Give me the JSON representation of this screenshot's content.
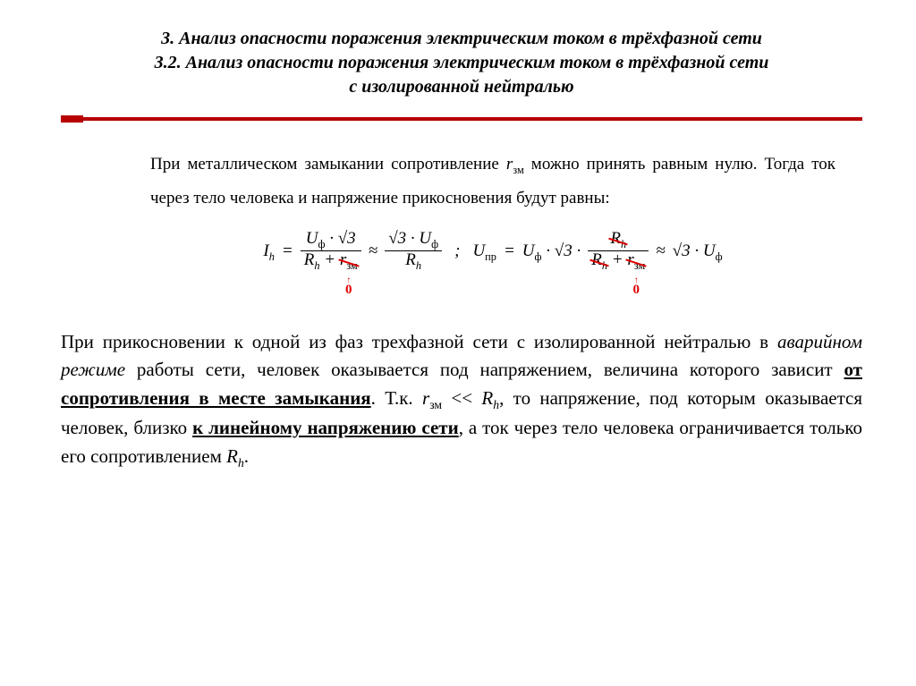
{
  "title": {
    "line1": "3. Анализ опасности поражения электрическим током в трёхфазной сети",
    "line2": "3.2. Анализ опасности поражения электрическим током в трёхфазной сети",
    "line3": "с изолированной нейтралью"
  },
  "colors": {
    "accent": "#b70000",
    "strike": "#e00000",
    "text": "#000000",
    "bg": "#ffffff"
  },
  "intro": {
    "t1": "При металлическом замыкании сопротивление ",
    "rzm": "r",
    "rzm_sub": "зм",
    "t2": " можно принять равным нулю. Тогда ток через тело человека и напряжение прикосновения будут равны:"
  },
  "formula": {
    "Ih": "I",
    "Ih_sub": "h",
    "eq": "=",
    "approx": "≈",
    "semicolon": ";",
    "cdot": "·",
    "sqrt3": "√3",
    "Uf": "U",
    "Uf_sub": "ф",
    "Rh": "R",
    "Rh_sub": "h",
    "rzm": "r",
    "rzm_sub": "зм",
    "Upr": "U",
    "Upr_sub": "пр",
    "zero": "0"
  },
  "para": {
    "p1": "При прикосновении к одной из фаз трехфазной сети с изолированной нейтралью в ",
    "p2_ital": "аварийном режиме",
    "p3": " работы сети, человек оказывается под напряжением, величина которого зависит ",
    "p4_boldul": "от сопротивления в месте замыкания",
    "p5": ". Т.к. ",
    "rzm": "r",
    "rzm_sub": "зм",
    "p6": " << ",
    "Rh": "R",
    "Rh_sub": "h",
    "p7": ", то напряжение, под которым оказывается человек, близко ",
    "p8_boldul": "к линейному напряжению сети",
    "p9": ", а ток через тело человека ограничивается только его сопротивлением ",
    "Rh2": "R",
    "Rh2_sub": "h",
    "p10": "."
  }
}
